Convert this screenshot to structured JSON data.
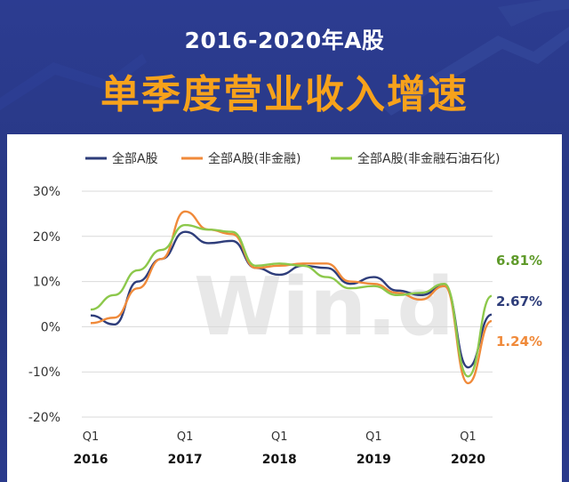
{
  "header": {
    "subtitle": "2016-2020年A股",
    "title": "单季度营业收入增速"
  },
  "colors": {
    "background": "#2a3a8c",
    "title": "#f7a21b",
    "series_all": "#2e3d7a",
    "series_nonfin": "#f08a3a",
    "series_nonfin_ex_petro": "#8cc84b"
  },
  "watermark": "Win.d",
  "chart_data": {
    "type": "line",
    "title": "单季度营业收入增速",
    "ylim": [
      -20,
      30
    ],
    "yticks": [
      -20,
      -10,
      0,
      10,
      20,
      30
    ],
    "ytick_labels": [
      "-20%",
      "-10%",
      "0%",
      "10%",
      "20%",
      "30%"
    ],
    "x": [
      "2016Q1",
      "2016Q2",
      "2016Q3",
      "2016Q4",
      "2017Q1",
      "2017Q2",
      "2017Q3",
      "2017Q4",
      "2018Q1",
      "2018Q2",
      "2018Q3",
      "2018Q4",
      "2019Q1",
      "2019Q2",
      "2019Q3",
      "2019Q4",
      "2020Q1",
      "2020Q2"
    ],
    "x_tick_labels": [
      {
        "label": "Q1",
        "year": "2016",
        "index": 0
      },
      {
        "label": "Q1",
        "year": "2017",
        "index": 4
      },
      {
        "label": "Q1",
        "year": "2018",
        "index": 8
      },
      {
        "label": "Q1",
        "year": "2019",
        "index": 12
      },
      {
        "label": "Q1",
        "year": "2020",
        "index": 16
      }
    ],
    "legend_position": "top",
    "series": [
      {
        "name": "全部A股",
        "color": "#2e3d7a",
        "values": [
          2.5,
          0.5,
          10,
          15,
          21,
          18.5,
          19,
          13,
          11.5,
          13.5,
          13,
          9.5,
          11,
          8,
          7,
          9,
          -9,
          2.67
        ],
        "end_label": "2.67%"
      },
      {
        "name": "全部A股(非金融)",
        "color": "#f08a3a",
        "values": [
          0.8,
          2,
          8.5,
          15,
          25.5,
          21.5,
          20.5,
          13,
          13.5,
          14,
          14,
          10,
          9.5,
          7.5,
          6,
          9,
          -12.5,
          1.24
        ],
        "end_label": "1.24%"
      },
      {
        "name": "全部A股(非金融石油石化)",
        "color": "#8cc84b",
        "values": [
          3.8,
          7,
          12.5,
          17,
          22.5,
          21.5,
          21,
          13.5,
          14,
          13.5,
          11,
          8.5,
          9,
          7,
          7.5,
          9.5,
          -11,
          6.81
        ],
        "end_label": "6.81%"
      }
    ]
  }
}
